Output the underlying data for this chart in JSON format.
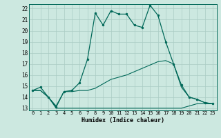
{
  "title": "",
  "xlabel": "Humidex (Indice chaleur)",
  "xlim": [
    -0.5,
    23.5
  ],
  "ylim": [
    12.8,
    22.4
  ],
  "xticks": [
    0,
    1,
    2,
    3,
    4,
    5,
    6,
    7,
    8,
    9,
    10,
    11,
    12,
    13,
    14,
    15,
    16,
    17,
    18,
    19,
    20,
    21,
    22,
    23
  ],
  "yticks": [
    13,
    14,
    15,
    16,
    17,
    18,
    19,
    20,
    21,
    22
  ],
  "bg_color": "#cce8e0",
  "grid_color": "#aaccc4",
  "line_color": "#006858",
  "line1_x": [
    0,
    1,
    2,
    3,
    4,
    5,
    6,
    7,
    8,
    9,
    10,
    11,
    12,
    13,
    14,
    15,
    16,
    17,
    18,
    19,
    20,
    21,
    22,
    23
  ],
  "line1_y": [
    14.6,
    14.9,
    14.0,
    13.1,
    14.5,
    14.6,
    15.3,
    17.4,
    21.6,
    20.5,
    21.8,
    21.5,
    21.5,
    20.5,
    20.3,
    22.3,
    21.4,
    19.0,
    17.0,
    15.1,
    14.0,
    13.8,
    13.5,
    13.4
  ],
  "line2_x": [
    0,
    1,
    2,
    3,
    4,
    5,
    6,
    7,
    8,
    9,
    10,
    11,
    12,
    13,
    14,
    15,
    16,
    17,
    18,
    19,
    20,
    21,
    22,
    23
  ],
  "line2_y": [
    14.6,
    14.6,
    14.0,
    13.2,
    14.5,
    14.5,
    14.6,
    14.6,
    14.8,
    15.2,
    15.6,
    15.8,
    16.0,
    16.3,
    16.6,
    16.9,
    17.2,
    17.3,
    17.0,
    14.9,
    14.0,
    13.8,
    13.5,
    13.4
  ],
  "line3_x": [
    0,
    1,
    2,
    3,
    4,
    5,
    6,
    7,
    8,
    9,
    10,
    11,
    12,
    13,
    14,
    15,
    16,
    17,
    18,
    19,
    20,
    21,
    22,
    23
  ],
  "line3_y": [
    14.6,
    14.6,
    14.0,
    13.0,
    13.0,
    13.0,
    13.0,
    13.0,
    13.0,
    13.0,
    13.0,
    13.0,
    13.0,
    13.0,
    13.0,
    13.0,
    13.0,
    13.0,
    13.0,
    13.0,
    13.2,
    13.4,
    13.4,
    13.4
  ]
}
